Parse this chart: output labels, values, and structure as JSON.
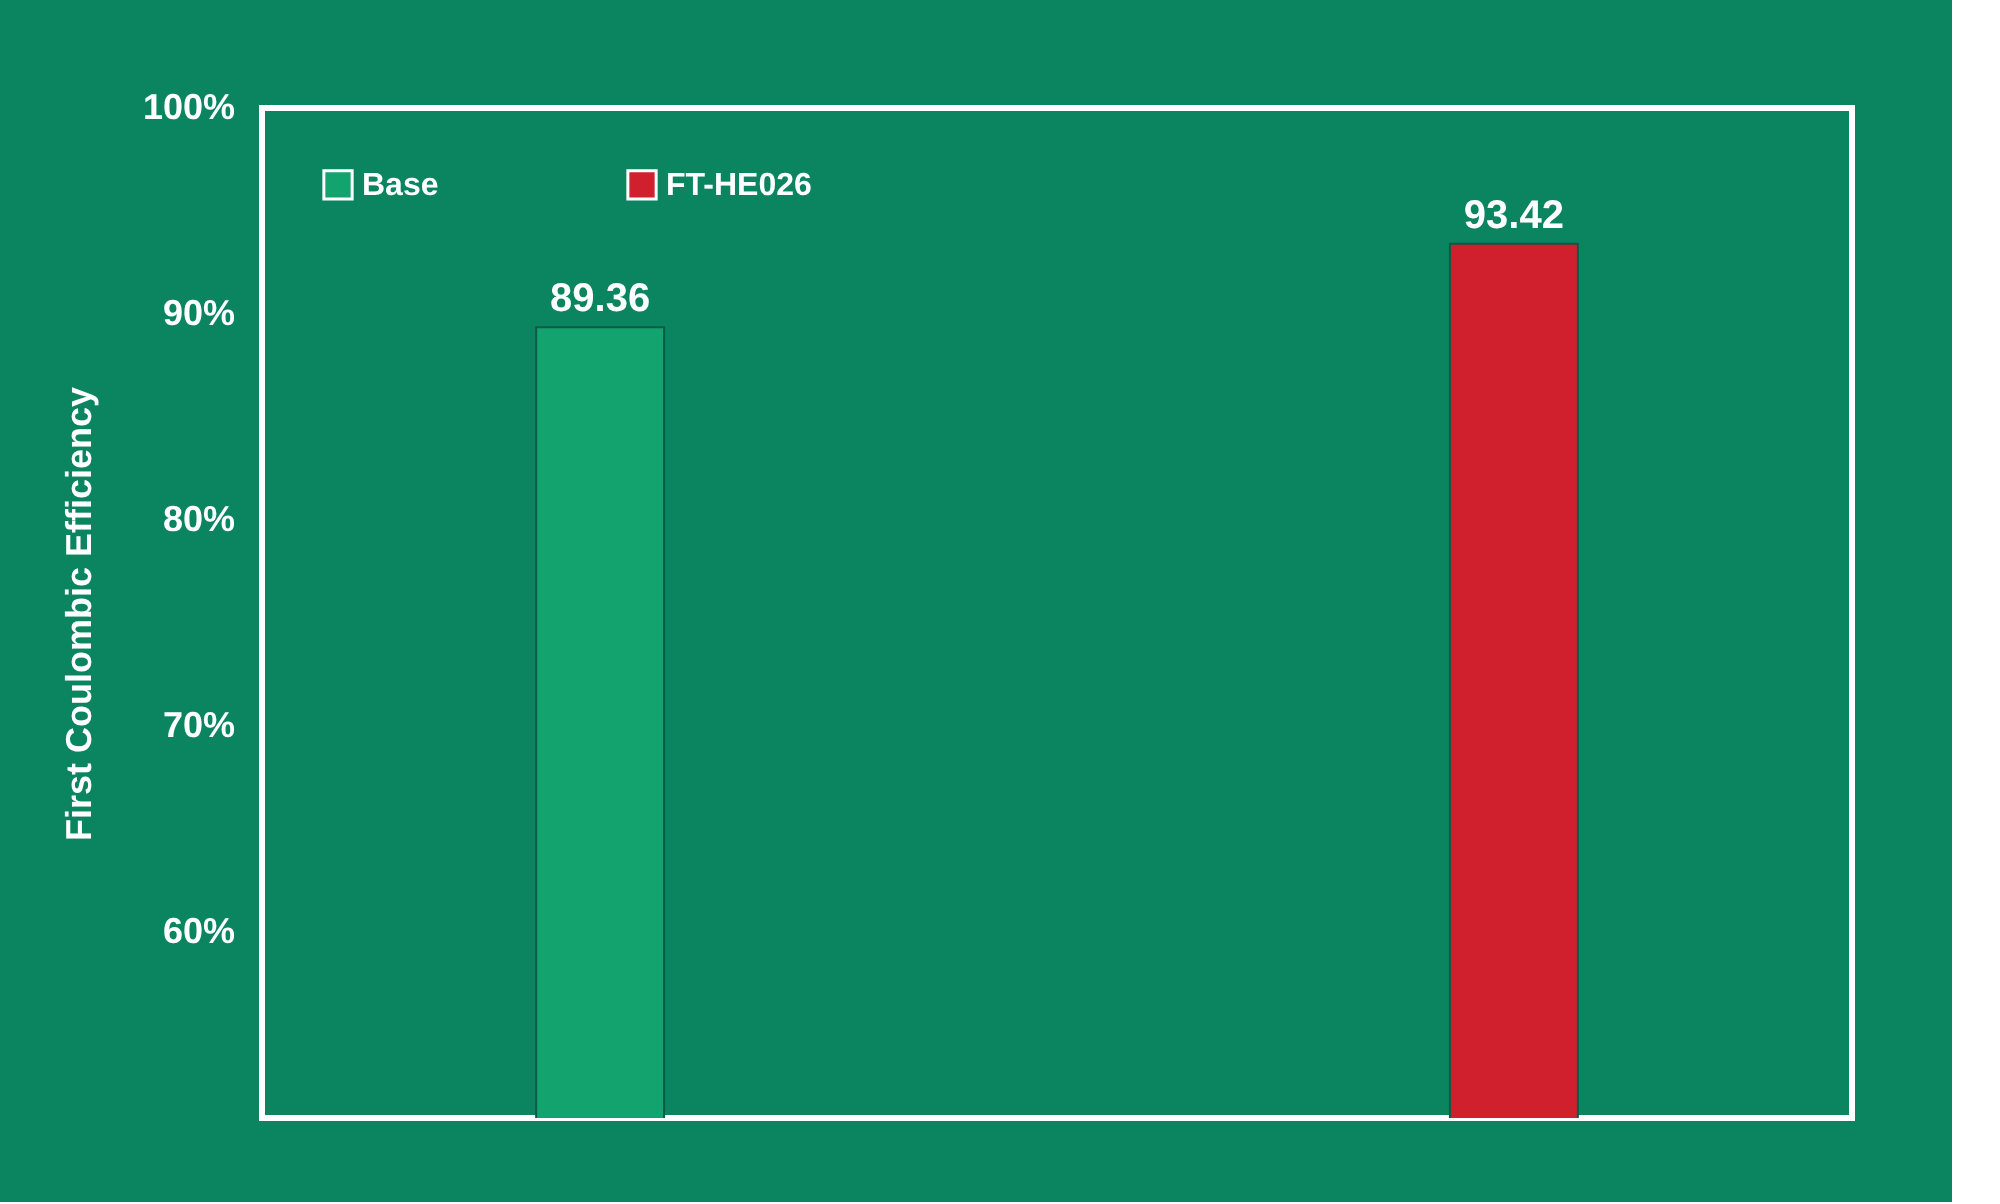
{
  "chart_data": {
    "type": "bar",
    "ylabel": "First Coulombic Efficiency",
    "categories": [
      null,
      null
    ],
    "series": [
      {
        "name": "Base",
        "color": "#13a36e",
        "values": [
          89.36,
          null
        ]
      },
      {
        "name": "FT-HE026",
        "color": "#d0202e",
        "values": [
          null,
          93.42
        ]
      }
    ],
    "ylim": [
      51,
      100
    ],
    "yticks": [
      {
        "value": 60,
        "label": "60%"
      },
      {
        "value": 70,
        "label": "70%"
      },
      {
        "value": 80,
        "label": "80%"
      },
      {
        "value": 90,
        "label": "90%"
      },
      {
        "value": 100,
        "label": "100%"
      }
    ],
    "stacked": true,
    "tick_labels": "y",
    "grid": false,
    "legend": "top left",
    "data_labels": true
  }
}
